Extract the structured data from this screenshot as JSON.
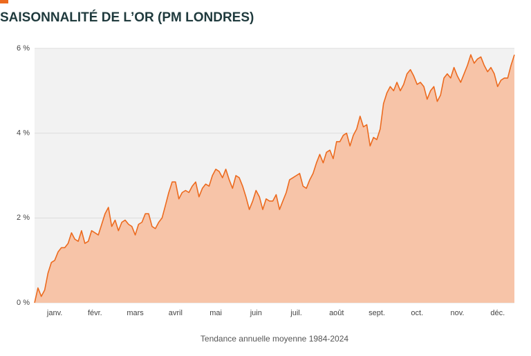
{
  "chart_data": {
    "type": "area",
    "title": "SAISONNALITÉ DE L’OR (PM LONDRES)",
    "xlabel": "Tendance annuelle moyenne 1984-2024",
    "categories": [
      null,
      null,
      null,
      null,
      null,
      null,
      "janv.",
      null,
      null,
      null,
      null,
      null,
      null,
      null,
      null,
      null,
      null,
      null,
      "févr.",
      null,
      null,
      null,
      null,
      null,
      null,
      null,
      null,
      null,
      null,
      null,
      "mars",
      null,
      null,
      null,
      null,
      null,
      null,
      null,
      null,
      null,
      null,
      null,
      "avril",
      null,
      null,
      null,
      null,
      null,
      null,
      null,
      null,
      null,
      null,
      null,
      "mai",
      null,
      null,
      null,
      null,
      null,
      null,
      null,
      null,
      null,
      null,
      null,
      "juin",
      null,
      null,
      null,
      null,
      null,
      null,
      null,
      null,
      null,
      null,
      null,
      "juil.",
      null,
      null,
      null,
      null,
      null,
      null,
      null,
      null,
      null,
      null,
      null,
      "août",
      null,
      null,
      null,
      null,
      null,
      null,
      null,
      null,
      null,
      null,
      null,
      "sept.",
      null,
      null,
      null,
      null,
      null,
      null,
      null,
      null,
      null,
      null,
      null,
      "oct.",
      null,
      null,
      null,
      null,
      null,
      null,
      null,
      null,
      null,
      null,
      null,
      "nov.",
      null,
      null,
      null,
      null,
      null,
      null,
      null,
      null,
      null,
      null,
      null,
      "déc.",
      null,
      null,
      null,
      null,
      null
    ],
    "values": [
      0,
      0.35,
      0.15,
      0.3,
      0.7,
      0.95,
      1.0,
      1.2,
      1.3,
      1.3,
      1.4,
      1.65,
      1.5,
      1.45,
      1.7,
      1.4,
      1.45,
      1.7,
      1.65,
      1.6,
      1.85,
      2.1,
      2.25,
      1.8,
      1.95,
      1.7,
      1.9,
      1.95,
      1.85,
      1.8,
      1.6,
      1.85,
      1.9,
      2.1,
      2.1,
      1.8,
      1.75,
      1.9,
      2.0,
      2.3,
      2.6,
      2.85,
      2.85,
      2.45,
      2.6,
      2.65,
      2.6,
      2.75,
      2.85,
      2.5,
      2.7,
      2.8,
      2.75,
      3.0,
      3.15,
      3.1,
      2.95,
      3.15,
      2.9,
      2.7,
      3.0,
      2.95,
      2.75,
      2.5,
      2.2,
      2.4,
      2.65,
      2.5,
      2.2,
      2.45,
      2.4,
      2.4,
      2.55,
      2.2,
      2.4,
      2.6,
      2.9,
      2.95,
      3.0,
      3.05,
      2.75,
      2.7,
      2.9,
      3.05,
      3.3,
      3.5,
      3.3,
      3.55,
      3.6,
      3.4,
      3.8,
      3.8,
      3.95,
      4.0,
      3.7,
      3.95,
      4.1,
      4.4,
      4.15,
      4.2,
      3.7,
      3.9,
      3.85,
      4.1,
      4.7,
      4.95,
      5.1,
      5.0,
      5.2,
      5.0,
      5.15,
      5.4,
      5.5,
      5.35,
      5.15,
      5.2,
      5.1,
      4.8,
      5.0,
      5.1,
      4.75,
      4.9,
      5.3,
      5.4,
      5.3,
      5.55,
      5.35,
      5.2,
      5.4,
      5.6,
      5.85,
      5.65,
      5.75,
      5.8,
      5.6,
      5.45,
      5.55,
      5.4,
      5.1,
      5.25,
      5.3,
      5.3,
      5.6,
      5.85
    ],
    "color": "#ec6a1e",
    "fill": "#f7c4a8",
    "ylim": [
      0,
      6
    ],
    "yticks": [
      {
        "value": 0,
        "label": "0 %"
      },
      {
        "value": 2,
        "label": "2 %"
      },
      {
        "value": 4,
        "label": "4 %"
      },
      {
        "value": 6,
        "label": "6 %"
      }
    ],
    "grid": true
  }
}
